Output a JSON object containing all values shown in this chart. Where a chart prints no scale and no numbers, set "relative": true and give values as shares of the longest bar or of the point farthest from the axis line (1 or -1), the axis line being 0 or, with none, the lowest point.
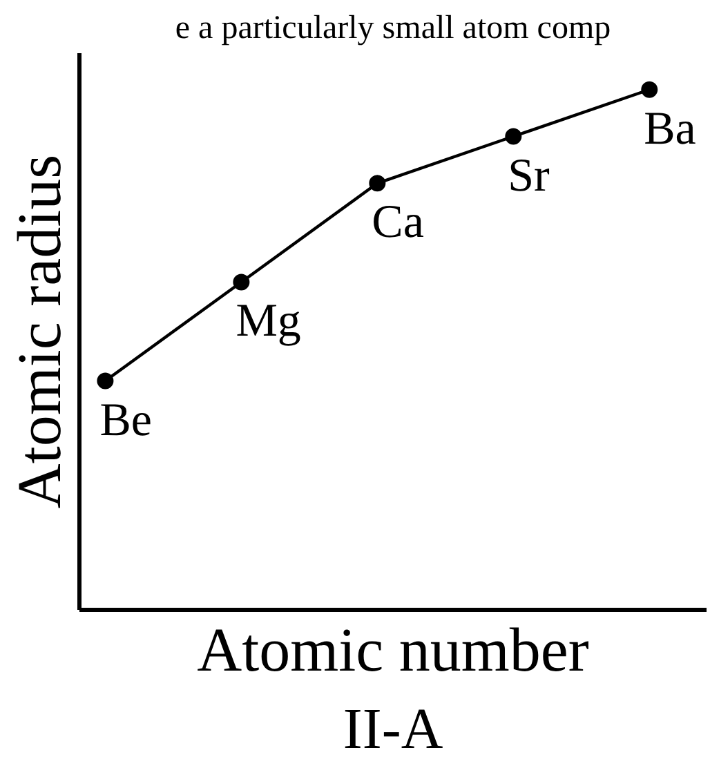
{
  "chart_data": {
    "type": "line",
    "title": "II-A",
    "xlabel": "Atomic number",
    "ylabel": "Atomic radius",
    "annotations": [
      "e a particularly small atom comp"
    ],
    "categories": [
      "Be",
      "Mg",
      "Ca",
      "Sr",
      "Ba"
    ],
    "series": [
      {
        "color": "#000000",
        "values": [
          0.44,
          0.63,
          0.82,
          0.91,
          1
        ]
      }
    ],
    "relative": true,
    "marker": "circle",
    "line_style": "solid",
    "tick_labels": false
  }
}
